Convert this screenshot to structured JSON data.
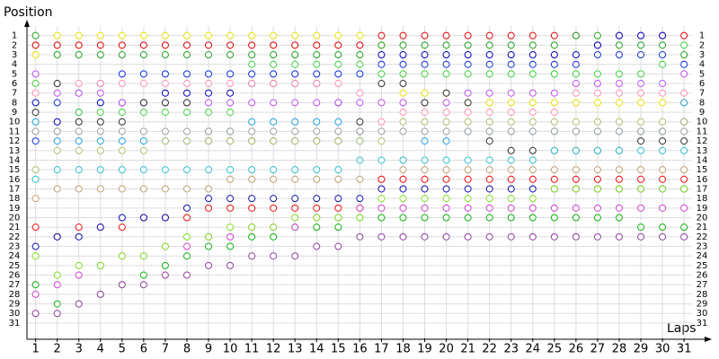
{
  "chart_data": {
    "type": "line",
    "y_label": "Position",
    "x_label": "Laps",
    "x": [
      1,
      2,
      3,
      4,
      5,
      6,
      7,
      8,
      9,
      10,
      11,
      12,
      13,
      14,
      15,
      16,
      17,
      18,
      19,
      20,
      21,
      22,
      23,
      24,
      25,
      26,
      27,
      28,
      29,
      30,
      31
    ],
    "xlim": [
      0.6,
      32.2
    ],
    "xticks": [
      1,
      2,
      3,
      4,
      5,
      6,
      7,
      8,
      9,
      10,
      11,
      12,
      13,
      14,
      15,
      16,
      17,
      18,
      19,
      20,
      21,
      22,
      23,
      24,
      25,
      26,
      27,
      28,
      29,
      30,
      31
    ],
    "ylim": [
      0,
      32.6
    ],
    "y_inverted": true,
    "yticks": [
      1,
      2,
      3,
      4,
      5,
      6,
      7,
      8,
      9,
      10,
      11,
      12,
      13,
      14,
      15,
      16,
      17,
      18,
      19,
      20,
      21,
      22,
      23,
      24,
      25,
      26,
      27,
      28,
      29,
      30,
      31
    ],
    "grid": true,
    "series": [
      {
        "color": "#e00000",
        "values": [
          2,
          2,
          2,
          2,
          2,
          2,
          2,
          2,
          2,
          2,
          2,
          2,
          2,
          2,
          2,
          2,
          1,
          1,
          1,
          1,
          1,
          1,
          1,
          1,
          1,
          1,
          2,
          1,
          1,
          1,
          1
        ]
      },
      {
        "color": "#e8e000",
        "values": [
          3,
          1,
          1,
          1,
          1,
          1,
          1,
          1,
          1,
          1,
          1,
          1,
          1,
          1,
          1,
          1,
          2,
          7,
          7,
          7,
          8,
          8,
          8,
          8,
          8,
          8,
          8,
          8,
          8,
          8,
          8
        ]
      },
      {
        "color": "#20a020",
        "values": [
          1,
          3,
          3,
          3,
          3,
          3,
          3,
          3,
          3,
          3,
          3,
          3,
          3,
          3,
          3,
          3,
          2,
          2,
          2,
          2,
          2,
          2,
          2,
          2,
          2,
          1,
          1,
          2,
          2,
          2,
          3
        ]
      },
      {
        "color": "#0000c0",
        "values": [
          8,
          10,
          9,
          8,
          8,
          8,
          7,
          7,
          7,
          7,
          6,
          6,
          6,
          6,
          8,
          11,
          3,
          3,
          3,
          3,
          3,
          3,
          3,
          3,
          3,
          3,
          2,
          1,
          1,
          1,
          10
        ]
      },
      {
        "color": "#1030e0",
        "values": [
          12,
          8,
          7,
          6,
          5,
          5,
          5,
          5,
          5,
          5,
          5,
          5,
          5,
          5,
          5,
          5,
          4,
          4,
          4,
          4,
          4,
          4,
          4,
          4,
          4,
          4,
          3,
          3,
          3,
          3,
          4
        ]
      },
      {
        "color": "#40d040",
        "values": [
          6,
          11,
          9,
          9,
          9,
          9,
          9,
          9,
          9,
          9,
          4,
          4,
          4,
          4,
          4,
          4,
          5,
          5,
          5,
          5,
          5,
          5,
          5,
          5,
          5,
          5,
          5,
          5,
          5,
          4,
          2
        ]
      },
      {
        "color": "#ff90b0",
        "values": [
          7,
          6,
          6,
          6,
          6,
          6,
          6,
          6,
          6,
          6,
          6,
          6,
          6,
          6,
          6,
          7,
          10,
          9,
          9,
          9,
          9,
          9,
          9,
          9,
          9,
          7,
          7,
          7,
          7,
          7,
          7
        ]
      },
      {
        "color": "#c050f0",
        "values": [
          5,
          7,
          7,
          7,
          8,
          8,
          8,
          8,
          8,
          8,
          8,
          8,
          8,
          8,
          8,
          8,
          8,
          8,
          8,
          8,
          7,
          7,
          7,
          7,
          7,
          6,
          6,
          6,
          6,
          6,
          5
        ]
      },
      {
        "color": "#20a0e0",
        "values": [
          10,
          12,
          12,
          12,
          12,
          12,
          12,
          12,
          11,
          11,
          10,
          10,
          10,
          10,
          10,
          12,
          16,
          14,
          12,
          12,
          11,
          11,
          11,
          11,
          11,
          11,
          11,
          11,
          11,
          11,
          8
        ]
      },
      {
        "color": "#a0a0a0",
        "values": [
          11,
          11,
          11,
          11,
          11,
          11,
          11,
          11,
          11,
          11,
          11,
          11,
          11,
          11,
          11,
          11,
          11,
          11,
          11,
          11,
          11,
          11,
          11,
          11,
          11,
          11,
          11,
          11,
          11,
          11,
          11
        ]
      },
      {
        "color": "#303030",
        "values": [
          9,
          6,
          10,
          10,
          10,
          8,
          8,
          8,
          12,
          12,
          12,
          12,
          12,
          12,
          12,
          10,
          6,
          6,
          8,
          7,
          8,
          12,
          13,
          13,
          13,
          13,
          13,
          13,
          12,
          12,
          12
        ]
      },
      {
        "color": "#b0c070",
        "values": [
          15,
          13,
          13,
          13,
          13,
          13,
          12,
          12,
          12,
          12,
          12,
          12,
          12,
          12,
          12,
          12,
          12,
          10,
          10,
          10,
          10,
          10,
          10,
          10,
          10,
          10,
          10,
          10,
          10,
          10,
          10
        ]
      },
      {
        "color": "#30c0d0",
        "values": [
          16,
          15,
          15,
          15,
          15,
          15,
          15,
          15,
          15,
          15,
          15,
          15,
          15,
          15,
          15,
          14,
          14,
          14,
          14,
          14,
          14,
          14,
          14,
          14,
          13,
          13,
          13,
          13,
          13,
          13,
          13
        ]
      },
      {
        "color": "#c0a070",
        "values": [
          18,
          17,
          17,
          17,
          17,
          17,
          17,
          17,
          17,
          16,
          16,
          16,
          16,
          16,
          16,
          16,
          16,
          15,
          15,
          15,
          15,
          15,
          15,
          15,
          15,
          15,
          15,
          15,
          15,
          15,
          15
        ]
      },
      {
        "color": "#f01010",
        "values": [
          21,
          22,
          21,
          21,
          21,
          20,
          20,
          20,
          19,
          19,
          19,
          19,
          19,
          19,
          19,
          19,
          16,
          16,
          16,
          16,
          16,
          16,
          16,
          16,
          16,
          16,
          16,
          16,
          16,
          16,
          16
        ]
      },
      {
        "color": "#1010b0",
        "values": [
          23,
          22,
          22,
          21,
          20,
          20,
          20,
          19,
          18,
          18,
          18,
          18,
          18,
          18,
          18,
          18,
          17,
          17,
          17,
          17,
          17,
          17,
          17,
          17,
          17,
          17,
          17,
          17,
          17,
          17,
          17
        ]
      },
      {
        "color": "#10b010",
        "values": [
          27,
          29,
          29,
          28,
          27,
          26,
          25,
          24,
          23,
          23,
          22,
          22,
          21,
          21,
          21,
          20,
          20,
          20,
          20,
          20,
          20,
          20,
          20,
          20,
          20,
          20,
          20,
          20,
          21,
          21,
          21
        ]
      },
      {
        "color": "#d040d0",
        "values": [
          28,
          27,
          26,
          25,
          24,
          24,
          23,
          23,
          22,
          22,
          21,
          21,
          21,
          20,
          20,
          19,
          19,
          19,
          19,
          19,
          19,
          19,
          19,
          19,
          19,
          19,
          19,
          19,
          19,
          19,
          19
        ]
      },
      {
        "color": "#9040a0",
        "values": [
          30,
          30,
          29,
          28,
          27,
          27,
          26,
          26,
          25,
          25,
          24,
          24,
          24,
          23,
          23,
          22,
          22,
          22,
          22,
          22,
          22,
          22,
          22,
          22,
          22,
          22,
          22,
          22,
          22,
          22,
          22
        ]
      },
      {
        "color": "#80e020",
        "values": [
          24,
          26,
          25,
          25,
          24,
          24,
          23,
          22,
          22,
          21,
          21,
          21,
          20,
          20,
          20,
          20,
          18,
          18,
          18,
          18,
          18,
          18,
          18,
          18,
          17,
          17,
          17,
          17,
          17,
          17,
          17
        ]
      }
    ]
  }
}
